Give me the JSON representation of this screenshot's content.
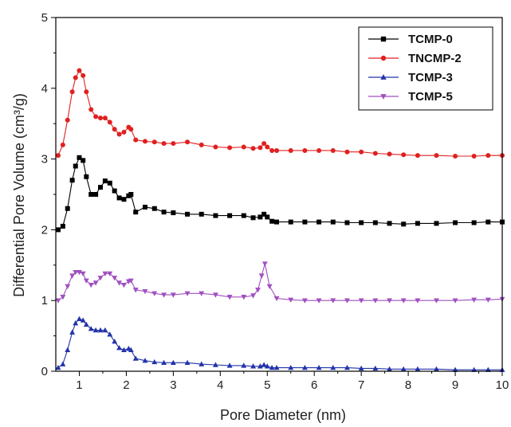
{
  "chart_data": {
    "type": "line",
    "title": "",
    "xlabel": "Pore Diameter (nm)",
    "ylabel": "Differential Pore Volume (cm³/g)",
    "xlim": [
      0.5,
      10
    ],
    "ylim": [
      0,
      5
    ],
    "xticks": [
      "1",
      "2",
      "3",
      "4",
      "5",
      "6",
      "7",
      "8",
      "9",
      "10"
    ],
    "yticks": [
      "0",
      "1",
      "2",
      "3",
      "4",
      "5"
    ],
    "grid": false,
    "legend_position": "top-right",
    "series": [
      {
        "name": "TCMP-0",
        "color": "#000000",
        "marker": "square",
        "x": [
          0.55,
          0.65,
          0.75,
          0.85,
          0.92,
          1.0,
          1.08,
          1.15,
          1.25,
          1.35,
          1.45,
          1.55,
          1.65,
          1.75,
          1.85,
          1.95,
          2.05,
          2.1,
          2.2,
          2.4,
          2.6,
          2.8,
          3.0,
          3.3,
          3.6,
          3.9,
          4.2,
          4.5,
          4.7,
          4.85,
          4.93,
          5.0,
          5.1,
          5.2,
          5.5,
          5.8,
          6.1,
          6.4,
          6.7,
          7.0,
          7.3,
          7.6,
          7.9,
          8.2,
          8.6,
          9.0,
          9.4,
          9.7,
          10.0
        ],
        "y": [
          2.0,
          2.05,
          2.3,
          2.7,
          2.9,
          3.02,
          2.98,
          2.75,
          2.5,
          2.5,
          2.6,
          2.69,
          2.66,
          2.55,
          2.45,
          2.43,
          2.48,
          2.5,
          2.25,
          2.32,
          2.3,
          2.25,
          2.24,
          2.22,
          2.22,
          2.2,
          2.2,
          2.2,
          2.17,
          2.18,
          2.22,
          2.18,
          2.12,
          2.11,
          2.11,
          2.11,
          2.11,
          2.11,
          2.1,
          2.1,
          2.1,
          2.09,
          2.08,
          2.09,
          2.09,
          2.1,
          2.1,
          2.11,
          2.11
        ]
      },
      {
        "name": "TNCMP-2",
        "color": "#e02020",
        "marker": "circle",
        "x": [
          0.55,
          0.65,
          0.75,
          0.85,
          0.92,
          1.0,
          1.08,
          1.15,
          1.25,
          1.35,
          1.45,
          1.55,
          1.65,
          1.75,
          1.85,
          1.95,
          2.05,
          2.1,
          2.2,
          2.4,
          2.6,
          2.8,
          3.0,
          3.3,
          3.6,
          3.9,
          4.2,
          4.5,
          4.7,
          4.85,
          4.93,
          5.0,
          5.1,
          5.2,
          5.5,
          5.8,
          6.1,
          6.4,
          6.7,
          7.0,
          7.3,
          7.6,
          7.9,
          8.2,
          8.6,
          9.0,
          9.4,
          9.7,
          10.0
        ],
        "y": [
          3.05,
          3.2,
          3.55,
          3.95,
          4.15,
          4.25,
          4.18,
          3.95,
          3.7,
          3.6,
          3.58,
          3.58,
          3.52,
          3.42,
          3.35,
          3.38,
          3.45,
          3.42,
          3.27,
          3.25,
          3.24,
          3.22,
          3.22,
          3.24,
          3.2,
          3.17,
          3.16,
          3.17,
          3.15,
          3.16,
          3.22,
          3.17,
          3.12,
          3.12,
          3.12,
          3.12,
          3.12,
          3.12,
          3.1,
          3.1,
          3.08,
          3.07,
          3.06,
          3.05,
          3.05,
          3.04,
          3.04,
          3.05,
          3.05
        ]
      },
      {
        "name": "TCMP-3",
        "color": "#2233aa",
        "marker": "triangle-up",
        "x": [
          0.55,
          0.65,
          0.75,
          0.85,
          0.92,
          1.0,
          1.08,
          1.15,
          1.25,
          1.35,
          1.45,
          1.55,
          1.65,
          1.75,
          1.85,
          1.95,
          2.05,
          2.1,
          2.2,
          2.4,
          2.6,
          2.8,
          3.0,
          3.3,
          3.6,
          3.9,
          4.2,
          4.5,
          4.7,
          4.85,
          4.93,
          5.0,
          5.1,
          5.2,
          5.5,
          5.8,
          6.1,
          6.4,
          6.7,
          7.0,
          7.3,
          7.6,
          7.9,
          8.2,
          8.6,
          9.0,
          9.4,
          9.7,
          10.0
        ],
        "y": [
          0.05,
          0.1,
          0.3,
          0.55,
          0.68,
          0.74,
          0.72,
          0.66,
          0.6,
          0.58,
          0.58,
          0.58,
          0.52,
          0.42,
          0.33,
          0.3,
          0.32,
          0.3,
          0.18,
          0.15,
          0.13,
          0.12,
          0.12,
          0.12,
          0.1,
          0.09,
          0.08,
          0.08,
          0.07,
          0.07,
          0.09,
          0.07,
          0.05,
          0.05,
          0.05,
          0.05,
          0.05,
          0.05,
          0.05,
          0.04,
          0.04,
          0.03,
          0.03,
          0.03,
          0.03,
          0.02,
          0.02,
          0.02,
          0.02
        ]
      },
      {
        "name": "TCMP-5",
        "color": "#a050c0",
        "marker": "triangle-down",
        "x": [
          0.55,
          0.65,
          0.75,
          0.85,
          0.92,
          1.0,
          1.08,
          1.15,
          1.25,
          1.35,
          1.45,
          1.55,
          1.65,
          1.75,
          1.85,
          1.95,
          2.05,
          2.1,
          2.2,
          2.4,
          2.6,
          2.8,
          3.0,
          3.3,
          3.6,
          3.9,
          4.2,
          4.5,
          4.7,
          4.8,
          4.88,
          4.95,
          5.05,
          5.2,
          5.5,
          5.8,
          6.1,
          6.4,
          6.7,
          7.0,
          7.3,
          7.6,
          7.9,
          8.2,
          8.6,
          9.0,
          9.4,
          9.7,
          10.0
        ],
        "y": [
          1.0,
          1.05,
          1.2,
          1.35,
          1.4,
          1.4,
          1.38,
          1.28,
          1.22,
          1.25,
          1.32,
          1.38,
          1.38,
          1.32,
          1.25,
          1.22,
          1.27,
          1.28,
          1.15,
          1.13,
          1.1,
          1.08,
          1.08,
          1.1,
          1.1,
          1.08,
          1.05,
          1.05,
          1.07,
          1.15,
          1.35,
          1.52,
          1.2,
          1.03,
          1.01,
          1.0,
          1.0,
          1.0,
          1.0,
          1.0,
          1.0,
          1.0,
          1.0,
          1.0,
          1.0,
          1.0,
          1.01,
          1.01,
          1.02
        ]
      }
    ]
  }
}
